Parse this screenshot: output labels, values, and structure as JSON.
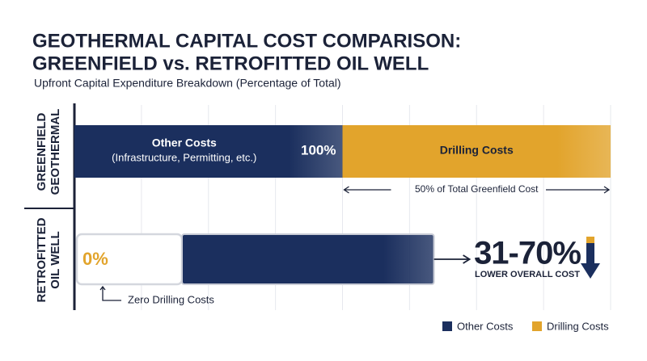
{
  "chart_data": {
    "type": "bar",
    "orientation": "horizontal",
    "stacked": true,
    "title": [
      "GEOTHERMAL CAPITAL COST COMPARISON:",
      "GREENFIELD vs. RETROFITTED OIL WELL"
    ],
    "subtitle": "Upfront Capital Expenditure Breakdown (Percentage of Total)",
    "categories": [
      "GREENFIELD GEOTHERMAL",
      "RETROFITTED OIL WELL"
    ],
    "series": [
      {
        "name": "Other Costs",
        "color": "#1b2f5e",
        "values": [
          50,
          47
        ]
      },
      {
        "name": "Drilling Costs",
        "color": "#e2a42c",
        "values": [
          50,
          0
        ],
        "value_labels": [
          null,
          "0%"
        ]
      }
    ],
    "xlim": [
      0,
      100
    ],
    "grid": true,
    "legend": "bottom-right",
    "annotations": {
      "other_detail": "(Infrastructure, Permitting, etc.)",
      "total_label": "100%",
      "drilling_share": "50% of Total Greenfield Cost",
      "zero_drilling": "Zero Drilling Costs",
      "savings": "31-70%",
      "savings_caption": "LOWER OVERALL COST"
    }
  }
}
